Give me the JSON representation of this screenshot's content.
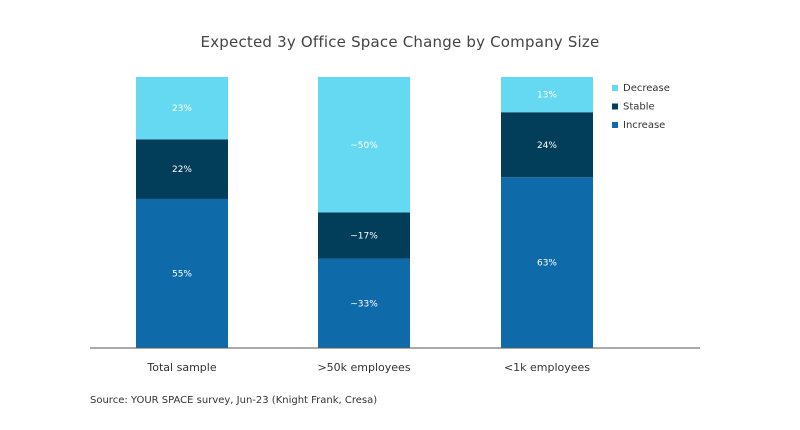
{
  "chart_data": {
    "type": "bar",
    "stacked": true,
    "title": "Expected 3y Office Space Change by Company Size",
    "categories": [
      "Total sample",
      ">50k employees",
      "<1k employees"
    ],
    "series": [
      {
        "name": "Increase",
        "values": [
          55,
          33,
          63
        ],
        "labels": [
          "55%",
          "~33%",
          "63%"
        ],
        "color": "#0F6AAA"
      },
      {
        "name": "Stable",
        "values": [
          22,
          17,
          24
        ],
        "labels": [
          "22%",
          "~17%",
          "24%"
        ],
        "color": "#023D59"
      },
      {
        "name": "Decrease",
        "values": [
          23,
          50,
          13
        ],
        "labels": [
          "23%",
          "~50%",
          "13%"
        ],
        "color": "#66D9F2"
      }
    ],
    "legend_order": [
      "Decrease",
      "Stable",
      "Increase"
    ],
    "legend_position": "top-right",
    "ylim": [
      0,
      100
    ],
    "grid": false
  },
  "source": "Source: YOUR SPACE survey, Jun-23 (Knight Frank, Cresa)"
}
